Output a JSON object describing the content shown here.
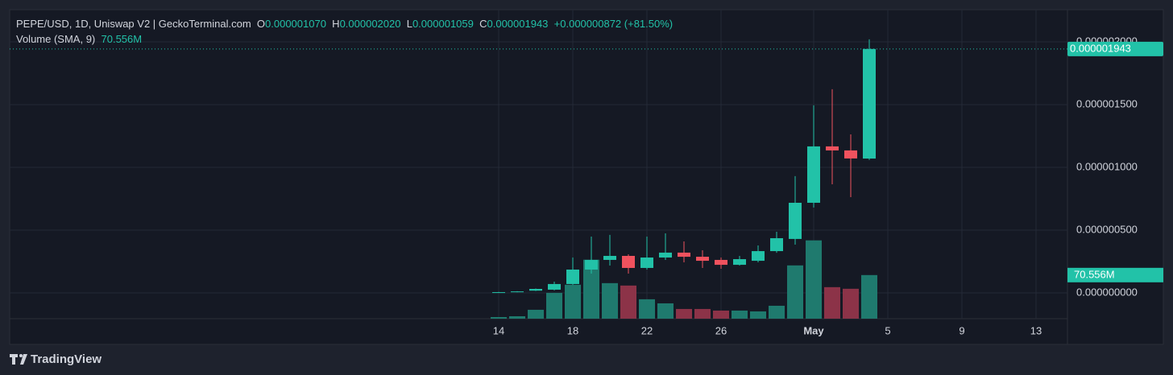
{
  "header": {
    "symbol": "PEPE/USD, 1D, Uniswap V2 | GeckoTerminal.com",
    "o_label": "O",
    "o": "0.000001070",
    "h_label": "H",
    "h": "0.000002020",
    "l_label": "L",
    "l": "0.000001059",
    "c_label": "C",
    "c": "0.000001943",
    "change": "+0.000000872 (+81.50%)",
    "volume_label": "Volume (SMA, 9)",
    "volume_value": "70.556M"
  },
  "chart_data": {
    "type": "candlestick",
    "categories": [
      "14",
      null,
      null,
      null,
      "18",
      null,
      null,
      null,
      "22",
      null,
      null,
      null,
      "26",
      null,
      null,
      null,
      null,
      "May",
      null,
      null,
      null,
      "5",
      null,
      null,
      null,
      "9",
      null,
      null,
      null,
      "13",
      null
    ],
    "open": [
      3e-09,
      8e-09,
      1.8e-08,
      2.6e-08,
      7.1e-08,
      1.86e-07,
      2.63e-07,
      2.95e-07,
      1.99e-07,
      2.82e-07,
      3.21e-07,
      2.88e-07,
      2.63e-07,
      2.24e-07,
      2.56e-07,
      3.33e-07,
      4.3e-07,
      7.18e-07,
      1.167e-06,
      1.135e-06,
      1.07e-06,
      null,
      null,
      null,
      null,
      null,
      null,
      null,
      null,
      null,
      null
    ],
    "high": [
      8e-09,
      1.4e-08,
      3.5e-08,
      9e-08,
      2.82e-07,
      4.49e-07,
      4.62e-07,
      3.08e-07,
      4.49e-07,
      4.74e-07,
      4.1e-07,
      3.4e-07,
      2.82e-07,
      2.95e-07,
      3.78e-07,
      4.87e-07,
      9.3e-07,
      1.494e-06,
      1.622e-06,
      1.263e-06,
      2.02e-06,
      null,
      null,
      null,
      null,
      null,
      null,
      null,
      null,
      null,
      null
    ],
    "low": [
      2e-09,
      6e-09,
      1.5e-08,
      2e-08,
      6.4e-08,
      1.54e-07,
      2.18e-07,
      1.54e-07,
      1.86e-07,
      2.63e-07,
      2.44e-07,
      1.99e-07,
      1.92e-07,
      2.18e-07,
      2.44e-07,
      3.2e-07,
      3.85e-07,
      6.8e-07,
      8.65e-07,
      7.63e-07,
      1.059e-06,
      null,
      null,
      null,
      null,
      null,
      null,
      null,
      null,
      null,
      null
    ],
    "close": [
      6e-09,
      1.2e-08,
      3.2e-08,
      7.1e-08,
      1.86e-07,
      2.63e-07,
      2.95e-07,
      1.99e-07,
      2.82e-07,
      3.21e-07,
      2.88e-07,
      2.56e-07,
      2.24e-07,
      2.69e-07,
      3.33e-07,
      4.36e-07,
      7.18e-07,
      1.167e-06,
      1.135e-06,
      1.071e-06,
      1.943e-06,
      null,
      null,
      null,
      null,
      null,
      null,
      null,
      null,
      null,
      null
    ],
    "up_color": "#22c2a8",
    "down_color": "#f0525e",
    "volume_up_color": "#1f7a6e",
    "volume_down_color": "#8c3348",
    "last_price_label": "0.000001943",
    "ylim": [
      -2.05e-07,
      2.256e-06
    ],
    "yticks": [
      {
        "value": 0,
        "label": "0.000000000"
      },
      {
        "value": 5e-07,
        "label": "0.000000500"
      },
      {
        "value": 1e-06,
        "label": "0.000001000"
      },
      {
        "value": 1.5e-06,
        "label": "0.000001500"
      },
      {
        "value": 2e-06,
        "label": "0.000002000"
      }
    ],
    "grid": true,
    "volume": {
      "values": [
        2.6,
        3.9,
        14.4,
        41.8,
        54.9,
        95.4,
        57.5,
        53.6,
        31.4,
        24.8,
        15.7,
        15.7,
        13.1,
        13.1,
        11.8,
        20.9,
        86.2,
        126.7,
        51.0,
        48.4,
        70.556,
        null,
        null,
        null,
        null,
        null,
        null,
        null,
        null,
        null,
        null
      ],
      "last_label": "70.556M",
      "ylim": [
        0,
        500
      ]
    }
  },
  "footer": {
    "brand": "TradingView"
  }
}
